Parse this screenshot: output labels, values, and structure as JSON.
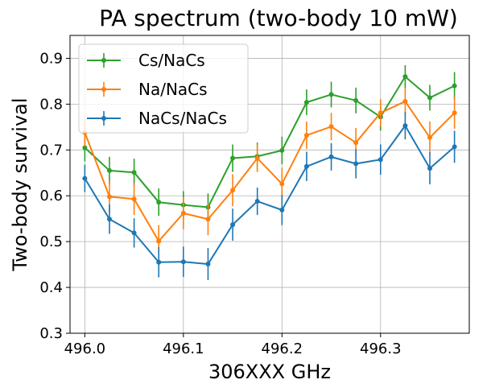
{
  "chart_data": {
    "type": "line",
    "title": "PA spectrum (two-body 10 mW)",
    "xlabel": "306XXX GHz",
    "ylabel": "Two-body survival",
    "xlim": [
      495.985,
      496.39
    ],
    "ylim": [
      0.3,
      0.95
    ],
    "xticks": [
      496.0,
      496.1,
      496.2,
      496.3
    ],
    "xtick_labels": [
      "496.0",
      "496.1",
      "496.2",
      "496.3"
    ],
    "yticks": [
      0.3,
      0.4,
      0.5,
      0.6,
      0.7,
      0.8,
      0.9
    ],
    "ytick_labels": [
      "0.3",
      "0.4",
      "0.5",
      "0.6",
      "0.7",
      "0.8",
      "0.9"
    ],
    "grid": true,
    "legend_position": "top-left",
    "x": [
      496.0,
      496.025,
      496.05,
      496.075,
      496.1,
      496.125,
      496.15,
      496.175,
      496.2,
      496.225,
      496.25,
      496.275,
      496.3,
      496.325,
      496.35,
      496.375
    ],
    "series": [
      {
        "name": "Cs/NaCs",
        "color": "#2ca02c",
        "values": [
          0.705,
          0.655,
          0.651,
          0.586,
          0.58,
          0.575,
          0.682,
          0.686,
          0.699,
          0.804,
          0.821,
          0.808,
          0.772,
          0.86,
          0.814,
          0.84
        ],
        "errors": [
          0.03,
          0.03,
          0.03,
          0.03,
          0.03,
          0.03,
          0.03,
          0.03,
          0.03,
          0.028,
          0.028,
          0.028,
          0.03,
          0.025,
          0.028,
          0.03
        ]
      },
      {
        "name": "Na/NaCs",
        "color": "#ff7f0e",
        "values": [
          0.738,
          0.598,
          0.593,
          0.501,
          0.562,
          0.549,
          0.612,
          0.682,
          0.626,
          0.732,
          0.751,
          0.716,
          0.781,
          0.806,
          0.727,
          0.781
        ],
        "errors": [
          0.03,
          0.035,
          0.035,
          0.035,
          0.035,
          0.035,
          0.035,
          0.03,
          0.035,
          0.03,
          0.03,
          0.032,
          0.03,
          0.03,
          0.035,
          0.035
        ]
      },
      {
        "name": "NaCs/NaCs",
        "color": "#1f77b4",
        "values": [
          0.638,
          0.549,
          0.519,
          0.455,
          0.456,
          0.451,
          0.537,
          0.588,
          0.569,
          0.664,
          0.685,
          0.67,
          0.679,
          0.753,
          0.66,
          0.707
        ],
        "errors": [
          0.03,
          0.032,
          0.032,
          0.033,
          0.033,
          0.035,
          0.035,
          0.03,
          0.033,
          0.032,
          0.03,
          0.032,
          0.033,
          0.03,
          0.035,
          0.035
        ]
      }
    ]
  }
}
